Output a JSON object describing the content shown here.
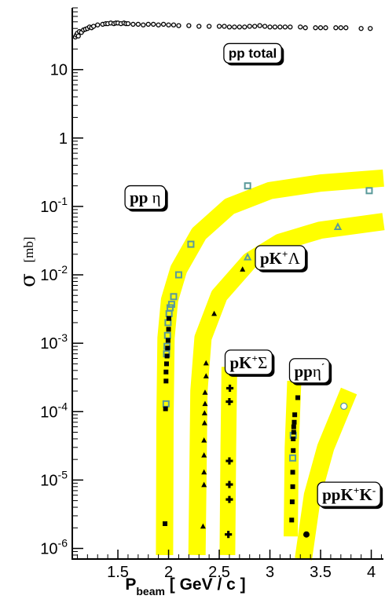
{
  "chart_data": {
    "type": "scatter",
    "title": "",
    "xlabel": "P",
    "xlabel_sub": "beam",
    "xlabel_units": " [ GeV / c ]",
    "ylabel": "σ",
    "ylabel_units": "[mb]",
    "xlim": [
      1.05,
      4.12
    ],
    "ylim": [
      7e-07,
      80
    ],
    "yscale": "log",
    "grid": false,
    "x_ticks": [
      {
        "value": 1.5,
        "label": "1.5"
      },
      {
        "value": 2,
        "label": "2"
      },
      {
        "value": 2.5,
        "label": "2.5"
      },
      {
        "value": 3,
        "label": "3"
      },
      {
        "value": 3.5,
        "label": "3.5"
      },
      {
        "value": 4,
        "label": "4"
      }
    ],
    "y_ticks": [
      {
        "value": 10,
        "base": "10",
        "exp": ""
      },
      {
        "value": 1,
        "base": "1",
        "exp": ""
      },
      {
        "value": 0.1,
        "base": "10",
        "exp": "-1"
      },
      {
        "value": 0.01,
        "base": "10",
        "exp": "-2"
      },
      {
        "value": 0.001,
        "base": "10",
        "exp": "-3"
      },
      {
        "value": 0.0001,
        "base": "10",
        "exp": "-4"
      },
      {
        "value": 1e-05,
        "base": "10",
        "exp": "-5"
      },
      {
        "value": 1e-06,
        "base": "10",
        "exp": "-6"
      }
    ],
    "labels": [
      {
        "id": "pp-total",
        "parts": [
          {
            "t": "pp total"
          }
        ],
        "font": "sans",
        "x": 2.83,
        "y": 18
      },
      {
        "id": "pp-eta",
        "parts": [
          {
            "t": "pp "
          },
          {
            "t": "η",
            "plain": true
          }
        ],
        "font": "serif",
        "x": 1.77,
        "y": 0.135
      },
      {
        "id": "pk-lambda",
        "parts": [
          {
            "t": "pK"
          },
          {
            "t": "+",
            "sup": true
          },
          {
            "t": "Λ",
            "plain": true
          }
        ],
        "font": "serif",
        "x": 3.1,
        "y": 0.0175
      },
      {
        "id": "pk-sigma",
        "parts": [
          {
            "t": "pK"
          },
          {
            "t": "+",
            "sup": true
          },
          {
            "t": "Σ",
            "plain": true
          }
        ],
        "font": "serif",
        "x": 2.79,
        "y": 0.00052
      },
      {
        "id": "pp-etaprime",
        "parts": [
          {
            "t": "pp"
          },
          {
            "t": "η",
            "plain": true
          },
          {
            "t": "´",
            "sup": true
          }
        ],
        "font": "serif",
        "x": 3.39,
        "y": 0.00039
      },
      {
        "id": "ppkk",
        "parts": [
          {
            "t": "ppK"
          },
          {
            "t": "+",
            "sup": true
          },
          {
            "t": "K",
            "plain": false
          },
          {
            "t": "-",
            "sup": true
          }
        ],
        "font": "serif",
        "x": 3.78,
        "y": 6.1e-06
      }
    ],
    "bands": [
      {
        "name": "pp eta band",
        "color": "#ffff00",
        "width": 22,
        "points": [
          [
            1.96,
            8e-07
          ],
          [
            1.965,
            8e-05
          ],
          [
            1.975,
            0.0012
          ],
          [
            2.01,
            0.0043
          ],
          [
            2.1,
            0.012
          ],
          [
            2.3,
            0.04
          ],
          [
            2.6,
            0.1
          ],
          [
            3.0,
            0.17
          ],
          [
            3.5,
            0.22
          ],
          [
            4.12,
            0.26
          ]
        ]
      },
      {
        "name": "pK+Lambda band",
        "color": "#ffff00",
        "width": 22,
        "points": [
          [
            2.28,
            8e-07
          ],
          [
            2.3,
            0.0002
          ],
          [
            2.34,
            0.0012
          ],
          [
            2.5,
            0.005
          ],
          [
            2.8,
            0.016
          ],
          [
            3.1,
            0.03
          ],
          [
            3.5,
            0.045
          ],
          [
            4.12,
            0.06
          ]
        ]
      },
      {
        "name": "pK+Sigma band",
        "color": "#ffff00",
        "width": 20,
        "points": [
          [
            2.58,
            8e-07
          ],
          [
            2.59,
            3e-05
          ],
          [
            2.6,
            0.00045
          ]
        ]
      },
      {
        "name": "pp eta-prime band",
        "color": "#ffff00",
        "width": 18,
        "points": [
          [
            3.205,
            1.5e-06
          ],
          [
            3.215,
            3e-05
          ],
          [
            3.24,
            0.00028
          ]
        ]
      },
      {
        "name": "ppK+K- band",
        "color": "#ffff00",
        "width": 22,
        "points": [
          [
            3.33,
            7e-07
          ],
          [
            3.42,
            6e-06
          ],
          [
            3.55,
            3e-05
          ],
          [
            3.78,
            0.0002
          ]
        ]
      }
    ],
    "series": [
      {
        "name": "pp total",
        "marker": "open-circle",
        "color": "#000000",
        "size": 5,
        "points": [
          [
            1.08,
            30
          ],
          [
            1.09,
            32
          ],
          [
            1.1,
            34
          ],
          [
            1.11,
            31
          ],
          [
            1.12,
            36
          ],
          [
            1.14,
            35
          ],
          [
            1.16,
            38
          ],
          [
            1.18,
            39
          ],
          [
            1.2,
            40
          ],
          [
            1.22,
            42
          ],
          [
            1.24,
            41
          ],
          [
            1.26,
            43
          ],
          [
            1.3,
            45
          ],
          [
            1.35,
            46
          ],
          [
            1.38,
            47
          ],
          [
            1.4,
            47
          ],
          [
            1.43,
            48
          ],
          [
            1.46,
            47
          ],
          [
            1.48,
            48
          ],
          [
            1.5,
            48
          ],
          [
            1.53,
            47
          ],
          [
            1.56,
            48
          ],
          [
            1.58,
            47
          ],
          [
            1.6,
            47
          ],
          [
            1.65,
            46
          ],
          [
            1.7,
            46
          ],
          [
            1.75,
            45
          ],
          [
            1.8,
            46
          ],
          [
            1.85,
            46
          ],
          [
            1.9,
            45
          ],
          [
            1.95,
            46
          ],
          [
            2.0,
            45
          ],
          [
            2.05,
            45
          ],
          [
            2.1,
            44
          ],
          [
            2.2,
            44
          ],
          [
            2.3,
            43
          ],
          [
            2.4,
            43
          ],
          [
            2.5,
            43
          ],
          [
            2.55,
            43
          ],
          [
            2.6,
            42
          ],
          [
            2.65,
            42
          ],
          [
            2.7,
            42
          ],
          [
            2.75,
            42
          ],
          [
            2.8,
            43
          ],
          [
            2.85,
            43
          ],
          [
            2.9,
            44
          ],
          [
            2.95,
            43
          ],
          [
            3.0,
            42
          ],
          [
            3.05,
            42
          ],
          [
            3.1,
            42
          ],
          [
            3.15,
            42
          ],
          [
            3.2,
            42
          ],
          [
            3.3,
            42
          ],
          [
            3.35,
            41
          ],
          [
            3.45,
            41
          ],
          [
            3.5,
            41
          ],
          [
            3.55,
            41
          ],
          [
            3.65,
            41
          ],
          [
            3.7,
            41
          ],
          [
            3.75,
            41
          ],
          [
            3.9,
            40
          ],
          [
            3.99,
            40
          ]
        ]
      },
      {
        "name": "pp eta",
        "marker": "open-square",
        "color": "#5a9a9a",
        "size": 7,
        "points": [
          [
            1.975,
            0.00013
          ],
          [
            1.98,
            0.0007
          ],
          [
            1.985,
            0.0009
          ],
          [
            1.99,
            0.0013
          ],
          [
            1.995,
            0.002
          ],
          [
            2.005,
            0.0027
          ],
          [
            2.015,
            0.0033
          ],
          [
            2.03,
            0.0037
          ],
          [
            2.05,
            0.0048
          ],
          [
            2.1,
            0.01
          ],
          [
            2.22,
            0.028
          ],
          [
            2.78,
            0.2
          ],
          [
            3.98,
            0.17
          ]
        ]
      },
      {
        "name": "pK+Lambda",
        "marker": "open-triangle",
        "color": "#5a9a9a",
        "size": 7,
        "points": [
          [
            2.78,
            0.018
          ],
          [
            3.67,
            0.05
          ]
        ]
      },
      {
        "name": "pp eta-prime",
        "marker": "open-square",
        "color": "#5a9a9a",
        "size": 7,
        "points": [
          [
            3.225,
            2.1e-05
          ],
          [
            3.23,
            4.5e-05
          ]
        ]
      },
      {
        "name": "ppK+K-",
        "marker": "open-circle",
        "color": "#5a9a9a",
        "size": 8,
        "points": [
          [
            3.73,
            0.00012
          ]
        ]
      },
      {
        "name": "eta filled",
        "marker": "filled-square",
        "color": "#000000",
        "size": 6,
        "points": [
          [
            1.965,
            2.3e-06
          ],
          [
            1.97,
            0.00011
          ],
          [
            1.975,
            0.00028
          ],
          [
            1.975,
            0.00038
          ],
          [
            1.98,
            0.0005
          ],
          [
            1.985,
            0.00065
          ],
          [
            1.99,
            0.00085
          ],
          [
            1.995,
            0.0011
          ],
          [
            2.0,
            0.0016
          ],
          [
            2.003,
            0.0023
          ]
        ]
      },
      {
        "name": "Lambda filled",
        "marker": "filled-triangle",
        "color": "#000000",
        "size": 7,
        "points": [
          [
            2.34,
            2.1e-06
          ],
          [
            2.35,
            8.5e-06
          ],
          [
            2.35,
            1.3e-05
          ],
          [
            2.35,
            2.3e-05
          ],
          [
            2.35,
            3.8e-05
          ],
          [
            2.355,
            6.8e-05
          ],
          [
            2.355,
            9.5e-05
          ],
          [
            2.36,
            0.00013
          ],
          [
            2.36,
            0.00019
          ],
          [
            2.37,
            0.00033
          ],
          [
            2.37,
            0.00051
          ],
          [
            2.45,
            0.0027
          ],
          [
            2.73,
            0.012
          ]
        ]
      },
      {
        "name": "Sigma cross",
        "marker": "cross",
        "color": "#000000",
        "size": 7,
        "points": [
          [
            2.59,
            1.6e-06
          ],
          [
            2.6,
            5.2e-06
          ],
          [
            2.6,
            8.6e-06
          ],
          [
            2.6,
            1.9e-05
          ],
          [
            2.6,
            0.00014
          ],
          [
            2.605,
            0.00022
          ]
        ]
      },
      {
        "name": "eta-prime filled",
        "marker": "filled-square",
        "color": "#000000",
        "size": 6,
        "points": [
          [
            3.215,
            2.6e-06
          ],
          [
            3.22,
            4.8e-06
          ],
          [
            3.225,
            8e-06
          ],
          [
            3.225,
            1.3e-05
          ],
          [
            3.23,
            2.7e-05
          ],
          [
            3.23,
            4e-05
          ],
          [
            3.235,
            5e-05
          ],
          [
            3.235,
            6e-05
          ],
          [
            3.24,
            7e-05
          ],
          [
            3.245,
            9e-05
          ],
          [
            3.275,
            0.00016
          ]
        ]
      },
      {
        "name": "ppKK filled",
        "marker": "filled-circle",
        "color": "#000000",
        "size": 8,
        "points": [
          [
            3.36,
            1.6e-06
          ]
        ]
      }
    ]
  }
}
